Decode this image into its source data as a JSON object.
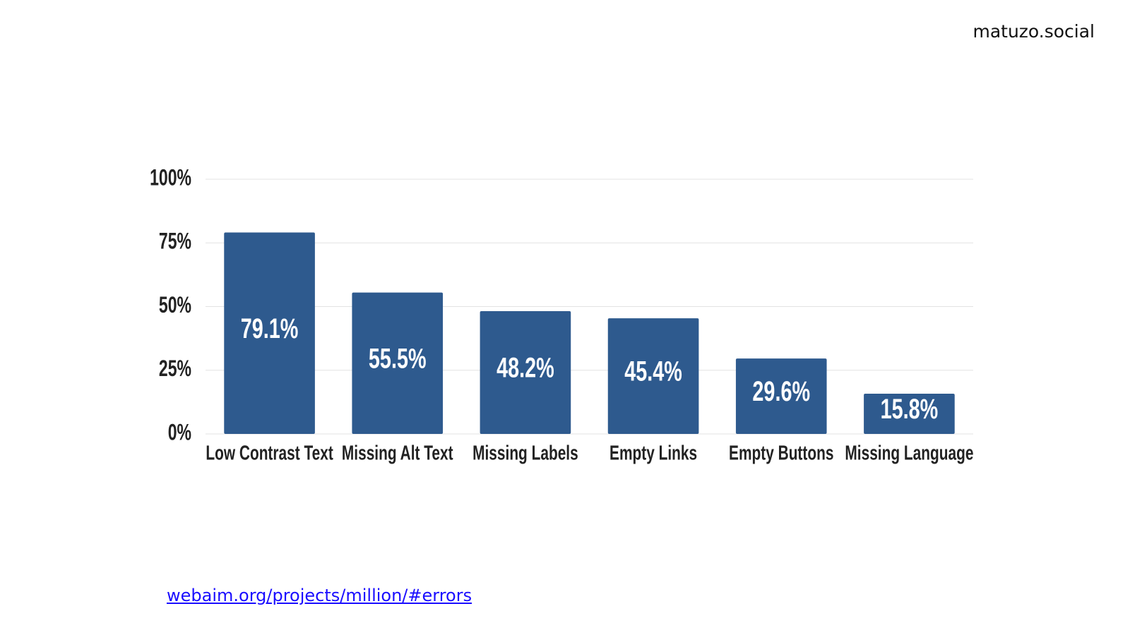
{
  "brand": "matuzo.social",
  "source_link": "webaim.org/projects/million/#errors",
  "chart_data": {
    "type": "bar",
    "categories": [
      "Low Contrast Text",
      "Missing Alt Text",
      "Missing Labels",
      "Empty Links",
      "Empty Buttons",
      "Missing Language"
    ],
    "values": [
      79.1,
      55.5,
      48.2,
      45.4,
      29.6,
      15.8
    ],
    "value_labels": [
      "79.1%",
      "55.5%",
      "48.2%",
      "45.4%",
      "29.6%",
      "15.8%"
    ],
    "color": "#2e5a8e",
    "ylim": [
      0,
      100
    ],
    "yticks": [
      {
        "value": 0,
        "label": "0%"
      },
      {
        "value": 25,
        "label": "25%"
      },
      {
        "value": 50,
        "label": "50%"
      },
      {
        "value": 75,
        "label": "75%"
      },
      {
        "value": 100,
        "label": "100%"
      }
    ],
    "grid": true
  }
}
